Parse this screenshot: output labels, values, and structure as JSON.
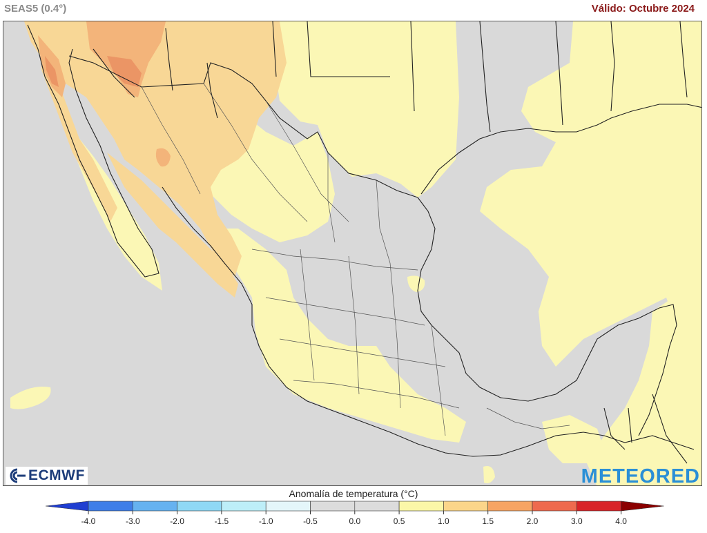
{
  "header": {
    "model_label": "SEAS5 (0.4°)",
    "valid_label": "Válido: Octubre 2024"
  },
  "logos": {
    "left_text": "ECMWF",
    "right_text": "METEORED"
  },
  "legend": {
    "title": "Anomalía de temperatura (°C)",
    "ticks": [
      "-4.0",
      "-3.0",
      "-2.0",
      "-1.5",
      "-1.0",
      "-0.5",
      "0.0",
      "0.5",
      "1.0",
      "1.5",
      "2.0",
      "3.0",
      "4.0"
    ],
    "colors": [
      "#1f3ed1",
      "#3f7ee8",
      "#66b2f0",
      "#8fd8f5",
      "#bdeef8",
      "#e4f6fa",
      "#dcdcdc",
      "#dcdcdc",
      "#fbf7a8",
      "#fbd58a",
      "#f7a463",
      "#ee6a4e",
      "#d82428",
      "#8b0000"
    ]
  },
  "map_colors": {
    "neutral": "#d9d9d9",
    "anom_05_10": "#fbf7b5",
    "anom_10_15": "#f8d796",
    "anom_15_20": "#f3b47a",
    "anom_20_30": "#eb9565",
    "border": "#222222"
  }
}
